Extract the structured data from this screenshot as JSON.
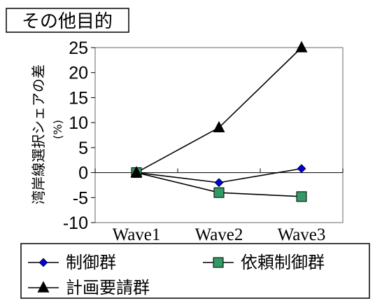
{
  "chart_data": {
    "type": "line",
    "title": "その他目的",
    "ylabel": "湾岸線選択シェアの差",
    "ylabel_unit": "(%)",
    "categories": [
      "Wave1",
      "Wave2",
      "Wave3"
    ],
    "ylim": [
      -10,
      25
    ],
    "yticks": [
      25,
      20,
      15,
      10,
      5,
      0,
      -5,
      -10
    ],
    "grid": false,
    "legend_position": "bottom",
    "series": [
      {
        "name": "制御群",
        "values": [
          0,
          -2,
          0.8
        ],
        "color": "#0000CC",
        "marker": "diamond"
      },
      {
        "name": "依頼制御群",
        "values": [
          0,
          -4,
          -4.8
        ],
        "color": "#339966",
        "marker": "square"
      },
      {
        "name": "計画要請群",
        "values": [
          0,
          9,
          25
        ],
        "color": "#000000",
        "marker": "triangle"
      }
    ]
  }
}
